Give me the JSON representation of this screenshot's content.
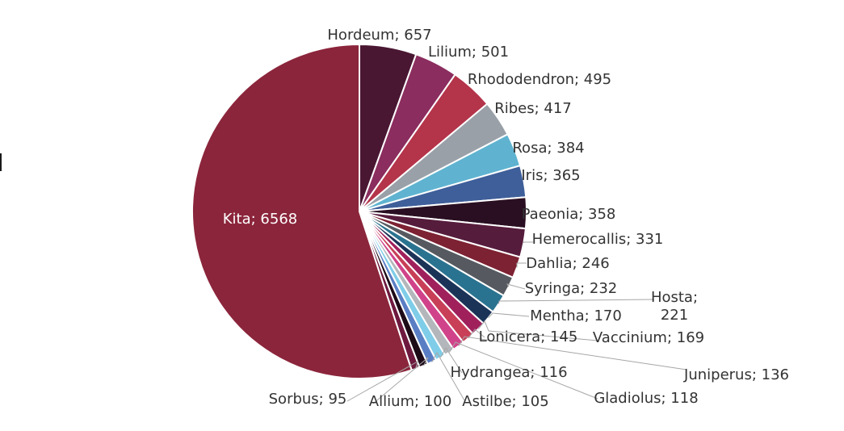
{
  "chart_data": {
    "type": "pie",
    "title": "",
    "legend": "none",
    "slices": [
      {
        "label": "Hordeum",
        "value": 657,
        "display": "Hordeum; 657",
        "color": "#4a1733"
      },
      {
        "label": "Lilium",
        "value": 501,
        "display": "Lilium; 501",
        "color": "#8b2d5e"
      },
      {
        "label": "Rhododendron",
        "value": 495,
        "display": "Rhododendron; 495",
        "color": "#b4344a"
      },
      {
        "label": "Ribes",
        "value": 417,
        "display": "Ribes; 417",
        "color": "#9aa0a8"
      },
      {
        "label": "Rosa",
        "value": 384,
        "display": "Rosa; 384",
        "color": "#5fb3d0"
      },
      {
        "label": "Iris",
        "value": 365,
        "display": "Iris; 365",
        "color": "#3f5f9a"
      },
      {
        "label": "Paeonia",
        "value": 358,
        "display": "Paeonia; 358",
        "color": "#2a0f22"
      },
      {
        "label": "Hemerocallis",
        "value": 331,
        "display": "Hemerocallis; 331",
        "color": "#561c3c"
      },
      {
        "label": "Dahlia",
        "value": 246,
        "display": "Dahlia; 246",
        "color": "#7d2233"
      },
      {
        "label": "Syringa",
        "value": 232,
        "display": "Syringa; 232",
        "color": "#565a60"
      },
      {
        "label": "Hosta",
        "value": 221,
        "display": "Hosta; 221",
        "color": "#2a7390"
      },
      {
        "label": "Mentha",
        "value": 170,
        "display": "Mentha; 170",
        "color": "#1c3358"
      },
      {
        "label": "Vaccinium",
        "value": 169,
        "display": "Vaccinium; 169",
        "color": "#a0205c"
      },
      {
        "label": "Lonicera",
        "value": 145,
        "display": "Lonicera; 145",
        "color": "#c83f57"
      },
      {
        "label": "Juniperus",
        "value": 136,
        "display": "Juniperus; 136",
        "color": "#d0438a"
      },
      {
        "label": "Gladiolus",
        "value": 118,
        "display": "Gladiolus; 118",
        "color": "#b3b7bc"
      },
      {
        "label": "Hydrangea",
        "value": 116,
        "display": "Hydrangea; 116",
        "color": "#7fcde8"
      },
      {
        "label": "Astilbe",
        "value": 105,
        "display": "Astilbe; 105",
        "color": "#5a7ec4"
      },
      {
        "label": "Allium",
        "value": 100,
        "display": "Allium; 100",
        "color": "#1e0b18"
      },
      {
        "label": "Sorbus",
        "value": 95,
        "display": "Sorbus; 95",
        "color": "#6e1a3e"
      },
      {
        "label": "Kita",
        "value": 6568,
        "display": "Kita; 6568",
        "color": "#8b253b"
      }
    ]
  }
}
